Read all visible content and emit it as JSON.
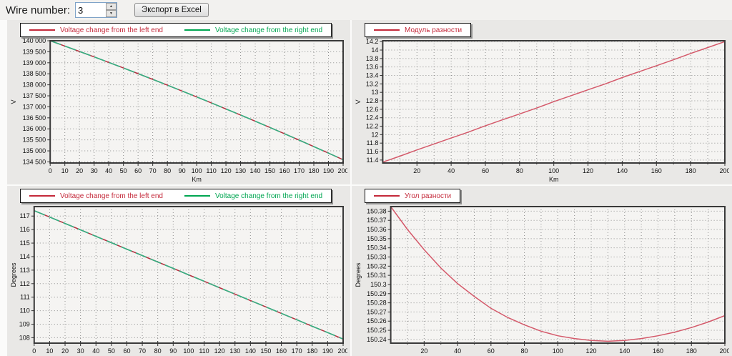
{
  "toolbar": {
    "wire_number_label": "Wire number:",
    "wire_number_value": "3",
    "export_button_label": "Экспорт в Excel"
  },
  "chart_data": [
    {
      "type": "line",
      "panel": "top-left",
      "ylabel": "V",
      "xlabel": "Km",
      "xlim": [
        0,
        200
      ],
      "ylim": [
        134450,
        140000
      ],
      "xticks": {
        "values": [
          0,
          10,
          20,
          30,
          40,
          50,
          60,
          70,
          80,
          90,
          100,
          110,
          120,
          130,
          140,
          150,
          160,
          170,
          180,
          190,
          200
        ],
        "labels": [
          "0",
          "10",
          "20",
          "30",
          "40",
          "50",
          "60",
          "70",
          "80",
          "90",
          "100",
          "110",
          "120",
          "130",
          "140",
          "150",
          "160",
          "170",
          "180",
          "190",
          "200"
        ]
      },
      "xminor": [],
      "yticks": {
        "values": [
          140000,
          139500,
          139000,
          138500,
          138000,
          137500,
          137000,
          136500,
          136000,
          135500,
          135000,
          134500
        ],
        "labels": [
          "140 000",
          "139 500",
          "139 000",
          "138 500",
          "138 000",
          "137 500",
          "137 000",
          "136 500",
          "136 000",
          "135 500",
          "135 000",
          "134 500"
        ]
      },
      "x": [
        0,
        10,
        20,
        30,
        40,
        50,
        60,
        70,
        80,
        90,
        100,
        110,
        120,
        130,
        140,
        150,
        160,
        170,
        180,
        190,
        200
      ],
      "series": [
        {
          "name": "Voltage change from the left end",
          "color": "#b5303f",
          "dash": null,
          "width": 1.5,
          "values": [
            140000,
            139759,
            139514,
            139267,
            139016,
            138763,
            138506,
            138247,
            137984,
            137719,
            137450,
            137179,
            136904,
            136627,
            136346,
            136063,
            135776,
            135487,
            135194,
            134899,
            134600
          ]
        },
        {
          "name": "Voltage change from the right end",
          "color": "#33b183",
          "dash": "16 6",
          "width": 1.6,
          "values": [
            140000,
            139759,
            139514,
            139267,
            139016,
            138763,
            138506,
            138247,
            137984,
            137719,
            137450,
            137179,
            136904,
            136627,
            136346,
            136063,
            135776,
            135487,
            135194,
            134899,
            134600
          ]
        }
      ],
      "legend": [
        {
          "label": "Voltage change from the left end",
          "color": "#c4293a"
        },
        {
          "label": "Voltage change from the right end",
          "color": "#00a651"
        }
      ]
    },
    {
      "type": "line",
      "panel": "top-right",
      "ylabel": "V",
      "xlabel": "Km",
      "xlim": [
        0,
        200
      ],
      "ylim": [
        11.33,
        14.22
      ],
      "xticks": {
        "values": [
          20,
          40,
          60,
          80,
          100,
          120,
          140,
          160,
          180,
          200
        ],
        "labels": [
          "20",
          "40",
          "60",
          "80",
          "100",
          "120",
          "140",
          "160",
          "180",
          "200"
        ]
      },
      "xminor": [
        10,
        30,
        50,
        70,
        90,
        110,
        130,
        150,
        170,
        190
      ],
      "yticks": {
        "values": [
          14.2,
          14,
          13.8,
          13.6,
          13.4,
          13.2,
          13,
          12.8,
          12.6,
          12.4,
          12.2,
          12,
          11.8,
          11.6,
          11.4
        ],
        "labels": [
          "14.2",
          "14",
          "13.8",
          "13.6",
          "13.4",
          "13.2",
          "13",
          "12.8",
          "12.6",
          "12.4",
          "12.2",
          "12",
          "11.8",
          "11.6",
          "11.4"
        ]
      },
      "x": [
        0,
        10,
        20,
        30,
        40,
        50,
        60,
        70,
        80,
        90,
        100,
        110,
        120,
        130,
        140,
        150,
        160,
        170,
        180,
        190,
        200
      ],
      "series": [
        {
          "name": "Модуль разности",
          "color": "#d4596a",
          "dash": null,
          "width": 1.5,
          "values": [
            11.35,
            11.49,
            11.64,
            11.78,
            11.92,
            12.06,
            12.21,
            12.35,
            12.49,
            12.63,
            12.78,
            12.92,
            13.06,
            13.2,
            13.35,
            13.49,
            13.63,
            13.77,
            13.92,
            14.06,
            14.2
          ]
        }
      ],
      "legend": [
        {
          "label": "Модуль разности",
          "color": "#c4293a"
        }
      ]
    },
    {
      "type": "line",
      "panel": "bottom-left",
      "ylabel": "Degrees",
      "xlabel": null,
      "xlim": [
        0,
        200
      ],
      "ylim": [
        107.6,
        117.7
      ],
      "xticks": {
        "values": [
          0,
          10,
          20,
          30,
          40,
          50,
          60,
          70,
          80,
          90,
          100,
          110,
          120,
          130,
          140,
          150,
          160,
          170,
          180,
          190,
          200
        ],
        "labels": [
          "0",
          "10",
          "20",
          "30",
          "40",
          "50",
          "60",
          "70",
          "80",
          "90",
          "100",
          "110",
          "120",
          "130",
          "140",
          "150",
          "160",
          "170",
          "180",
          "190",
          "200"
        ]
      },
      "xminor": [],
      "yticks": {
        "values": [
          117,
          116,
          115,
          114,
          113,
          112,
          111,
          110,
          109,
          108
        ],
        "labels": [
          "117",
          "116",
          "115",
          "114",
          "113",
          "112",
          "111",
          "110",
          "109",
          "108"
        ]
      },
      "x": [
        0,
        10,
        20,
        30,
        40,
        50,
        60,
        70,
        80,
        90,
        100,
        110,
        120,
        130,
        140,
        150,
        160,
        170,
        180,
        190,
        200
      ],
      "series": [
        {
          "name": "Voltage change from the left end",
          "color": "#b5303f",
          "dash": null,
          "width": 1.5,
          "values": [
            117.4,
            116.93,
            116.45,
            115.98,
            115.5,
            115.03,
            114.55,
            114.08,
            113.6,
            113.13,
            112.65,
            112.18,
            111.7,
            111.23,
            110.75,
            110.28,
            109.8,
            109.33,
            108.85,
            108.38,
            107.9
          ]
        },
        {
          "name": "Voltage change from the right end",
          "color": "#33b183",
          "dash": "16 6",
          "width": 1.6,
          "values": [
            117.4,
            116.93,
            116.45,
            115.98,
            115.5,
            115.03,
            114.55,
            114.08,
            113.6,
            113.13,
            112.65,
            112.18,
            111.7,
            111.23,
            110.75,
            110.28,
            109.8,
            109.33,
            108.85,
            108.38,
            107.9
          ]
        }
      ],
      "legend": [
        {
          "label": "Voltage change from the left end",
          "color": "#c4293a"
        },
        {
          "label": "Voltage change from the right end",
          "color": "#00a651"
        }
      ]
    },
    {
      "type": "line",
      "panel": "bottom-right",
      "ylabel": "Degrees",
      "xlabel": null,
      "xlim": [
        0,
        200
      ],
      "ylim": [
        150.236,
        150.385
      ],
      "xticks": {
        "values": [
          20,
          40,
          60,
          80,
          100,
          120,
          140,
          160,
          180,
          200
        ],
        "labels": [
          "20",
          "40",
          "60",
          "80",
          "100",
          "120",
          "140",
          "160",
          "180",
          "200"
        ]
      },
      "xminor": [
        10,
        30,
        50,
        70,
        90,
        110,
        130,
        150,
        170,
        190
      ],
      "yticks": {
        "values": [
          150.38,
          150.37,
          150.36,
          150.35,
          150.34,
          150.33,
          150.32,
          150.31,
          150.3,
          150.29,
          150.28,
          150.27,
          150.26,
          150.25,
          150.24
        ],
        "labels": [
          "150.38",
          "150.37",
          "150.36",
          "150.35",
          "150.34",
          "150.33",
          "150.32",
          "150.31",
          "150.3",
          "150.29",
          "150.28",
          "150.27",
          "150.26",
          "150.25",
          "150.24"
        ]
      },
      "x": [
        0,
        10,
        20,
        30,
        40,
        50,
        60,
        70,
        80,
        90,
        100,
        110,
        120,
        130,
        140,
        150,
        160,
        170,
        180,
        190,
        200
      ],
      "series": [
        {
          "name": "Угол разности",
          "color": "#d4596a",
          "dash": null,
          "width": 1.5,
          "values": [
            150.385,
            150.36,
            150.338,
            150.318,
            150.301,
            150.287,
            150.274,
            150.264,
            150.256,
            150.249,
            150.244,
            150.241,
            150.239,
            150.238,
            150.239,
            150.241,
            150.244,
            150.248,
            150.253,
            150.259,
            150.266
          ]
        }
      ],
      "legend": [
        {
          "label": "Угол разности",
          "color": "#c4293a"
        }
      ]
    }
  ]
}
